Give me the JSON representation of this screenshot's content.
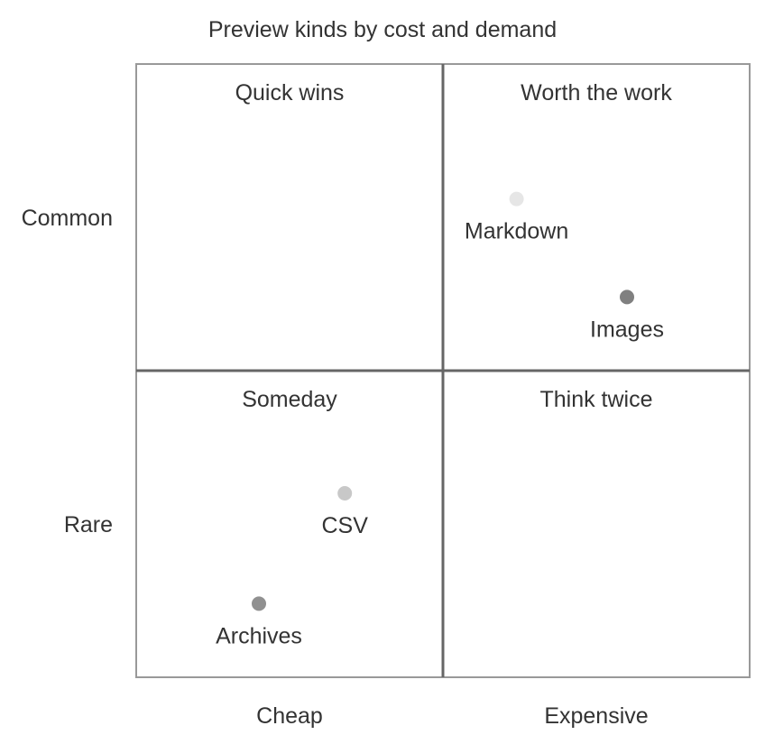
{
  "chart_data": {
    "type": "scatter",
    "subtype": "quadrant",
    "title": "Preview kinds by cost and demand",
    "x_axis": {
      "low_label": "Cheap",
      "high_label": "Expensive",
      "range": [
        0,
        1
      ]
    },
    "y_axis": {
      "low_label": "Rare",
      "high_label": "Common",
      "range": [
        0,
        1
      ]
    },
    "quadrants": [
      {
        "position": "top-left",
        "label": "Quick wins"
      },
      {
        "position": "top-right",
        "label": "Worth the work"
      },
      {
        "position": "bottom-left",
        "label": "Someday"
      },
      {
        "position": "bottom-right",
        "label": "Think twice"
      }
    ],
    "points": [
      {
        "label": "Markdown",
        "x": 0.62,
        "y": 0.78,
        "color": "#e6e6e6"
      },
      {
        "label": "Images",
        "x": 0.8,
        "y": 0.62,
        "color": "#808080"
      },
      {
        "label": "CSV",
        "x": 0.34,
        "y": 0.3,
        "color": "#c8c8c8"
      },
      {
        "label": "Archives",
        "x": 0.2,
        "y": 0.12,
        "color": "#909090"
      }
    ],
    "colors": {
      "frame": "#999999",
      "divider": "#666666",
      "text": "#333333"
    }
  }
}
